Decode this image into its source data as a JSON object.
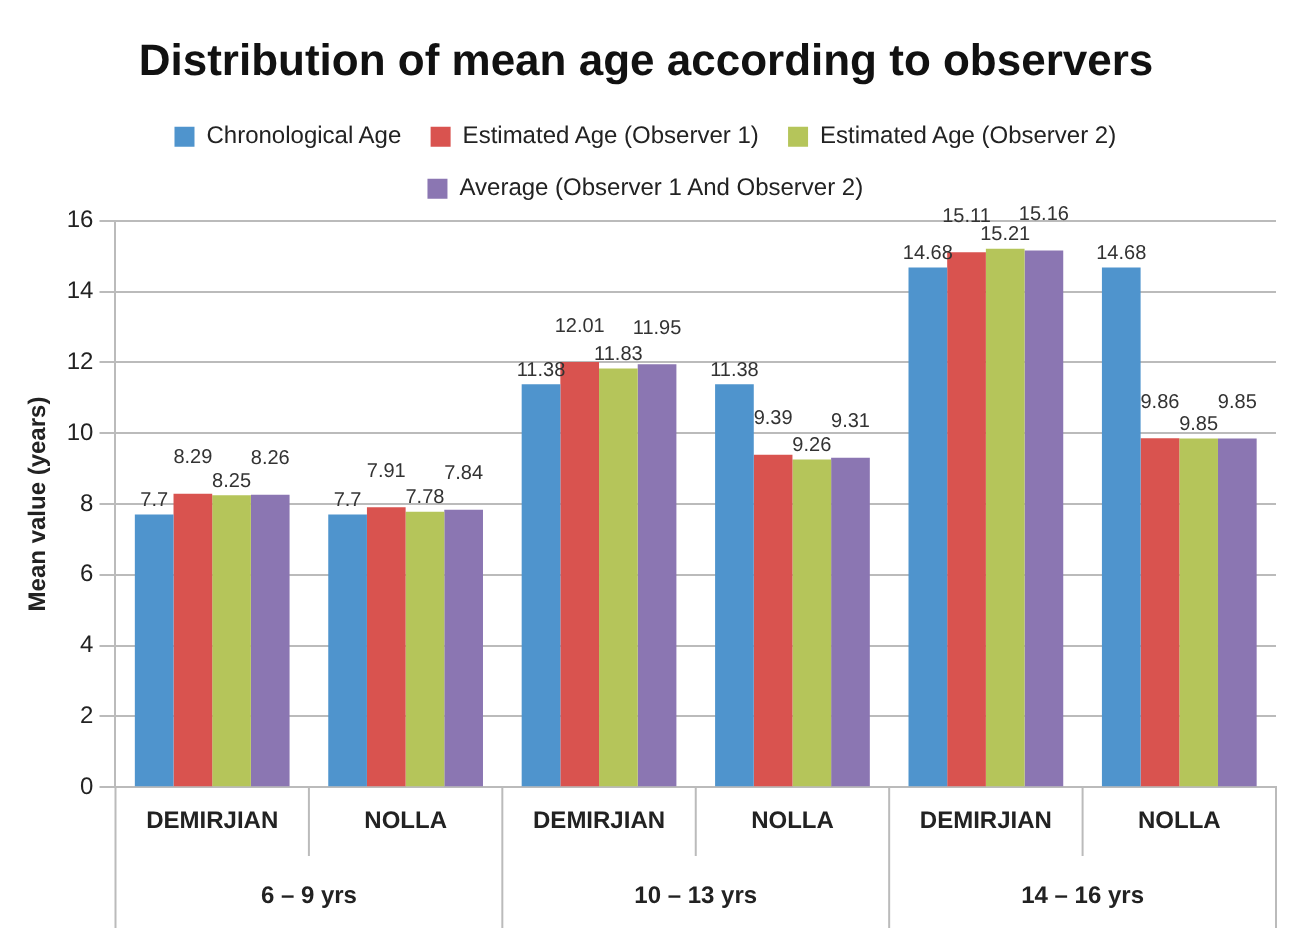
{
  "chart_data": {
    "type": "bar",
    "title": "Distribution of mean age according to observers",
    "ylabel": "Mean value (years)",
    "categories": [
      "DEMIRJIAN",
      "NOLLA",
      "DEMIRJIAN",
      "NOLLA",
      "DEMIRJIAN",
      "NOLLA"
    ],
    "annotations": [
      "6 – 9 yrs",
      "10 – 13 yrs",
      "14 – 16 yrs"
    ],
    "series": [
      {
        "name": "Chronological Age",
        "color": "#4f94cd",
        "values": [
          7.7,
          7.7,
          11.38,
          11.38,
          14.68,
          14.68
        ]
      },
      {
        "name": "Estimated Age (Observer 1)",
        "color": "#d9534f",
        "values": [
          8.29,
          7.91,
          12.01,
          9.39,
          15.11,
          9.86
        ]
      },
      {
        "name": "Estimated Age (Observer 2)",
        "color": "#b5c55a",
        "values": [
          8.25,
          7.78,
          11.83,
          9.26,
          15.21,
          9.85
        ]
      },
      {
        "name": "Average (Observer 1 And Observer 2)",
        "color": "#8b76b2",
        "values": [
          8.26,
          7.84,
          11.95,
          9.31,
          15.16,
          9.85
        ]
      }
    ],
    "ylim": [
      0,
      16
    ],
    "yticks": [
      0,
      2,
      4,
      6,
      8,
      10,
      12,
      14,
      16
    ],
    "grid": "y",
    "legend": "top",
    "data_labels": true
  }
}
